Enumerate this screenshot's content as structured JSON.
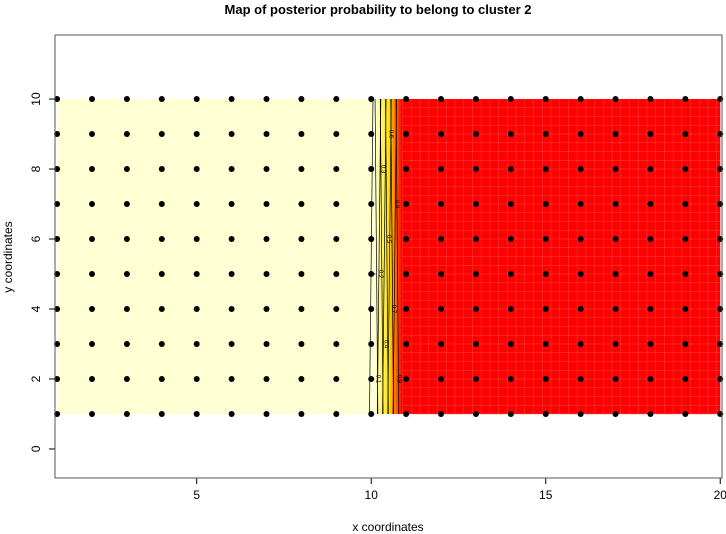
{
  "chart_data": {
    "type": "heatmap",
    "title": "Map of posterior probability to belong to cluster  2",
    "xlabel": "x coordinates",
    "ylabel": "y coordinates",
    "xlim": [
      0.94,
      20.05
    ],
    "ylim": [
      -0.83,
      11.83
    ],
    "xticks": [
      5,
      10,
      15,
      20
    ],
    "yticks": [
      0,
      2,
      4,
      6,
      8,
      10
    ],
    "grid": false,
    "points": {
      "x": [
        1,
        2,
        3,
        4,
        5,
        6,
        7,
        8,
        9,
        10,
        11,
        12,
        13,
        14,
        15,
        16,
        17,
        18,
        19,
        20
      ],
      "y": [
        1,
        2,
        3,
        4,
        5,
        6,
        7,
        8,
        9,
        10
      ]
    },
    "probability_by_x": {
      "x": [
        1,
        2,
        3,
        4,
        5,
        6,
        7,
        8,
        9,
        10,
        11,
        12,
        13,
        14,
        15,
        16,
        17,
        18,
        19,
        20
      ],
      "value": [
        0,
        0,
        0,
        0,
        0,
        0,
        0,
        0,
        0,
        0,
        1,
        1,
        1,
        1,
        1,
        1,
        1,
        1,
        1,
        1
      ]
    },
    "contour_levels": [
      "0.1",
      "0.2",
      "0.3",
      "0.4",
      "0.5",
      "0.6",
      "0.7",
      "0.8",
      "0.9",
      "1"
    ],
    "colors": {
      "low": "#FFFFD4",
      "mid": "#FFCC33",
      "high": "#FF0000",
      "points": "#000000"
    }
  }
}
